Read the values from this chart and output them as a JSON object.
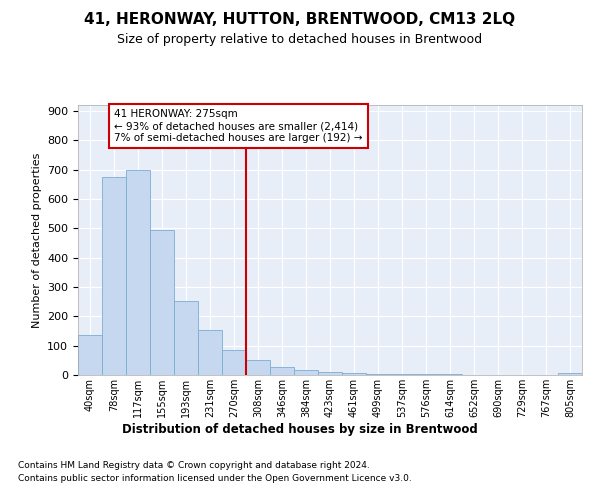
{
  "title": "41, HERONWAY, HUTTON, BRENTWOOD, CM13 2LQ",
  "subtitle": "Size of property relative to detached houses in Brentwood",
  "xlabel": "Distribution of detached houses by size in Brentwood",
  "ylabel": "Number of detached properties",
  "bin_labels": [
    "40sqm",
    "78sqm",
    "117sqm",
    "155sqm",
    "193sqm",
    "231sqm",
    "270sqm",
    "308sqm",
    "346sqm",
    "384sqm",
    "423sqm",
    "461sqm",
    "499sqm",
    "537sqm",
    "576sqm",
    "614sqm",
    "652sqm",
    "690sqm",
    "729sqm",
    "767sqm",
    "805sqm"
  ],
  "bar_values": [
    135,
    675,
    700,
    493,
    253,
    152,
    85,
    50,
    28,
    18,
    10,
    8,
    5,
    3,
    2,
    2,
    1,
    1,
    0,
    0,
    8
  ],
  "bar_color": "#c5d8f0",
  "bar_edge_color": "#7aadd4",
  "property_line_x": 6.5,
  "property_line_label": "41 HERONWAY: 275sqm",
  "annotation_line1": "← 93% of detached houses are smaller (2,414)",
  "annotation_line2": "7% of semi-detached houses are larger (192) →",
  "annotation_box_color": "#ffffff",
  "annotation_box_edge": "#cc0000",
  "line_color": "#cc0000",
  "ylim": [
    0,
    920
  ],
  "yticks": [
    0,
    100,
    200,
    300,
    400,
    500,
    600,
    700,
    800,
    900
  ],
  "footnote1": "Contains HM Land Registry data © Crown copyright and database right 2024.",
  "footnote2": "Contains public sector information licensed under the Open Government Licence v3.0.",
  "background_color": "#ffffff",
  "plot_bg_color": "#e8eef8",
  "grid_color": "#ffffff"
}
